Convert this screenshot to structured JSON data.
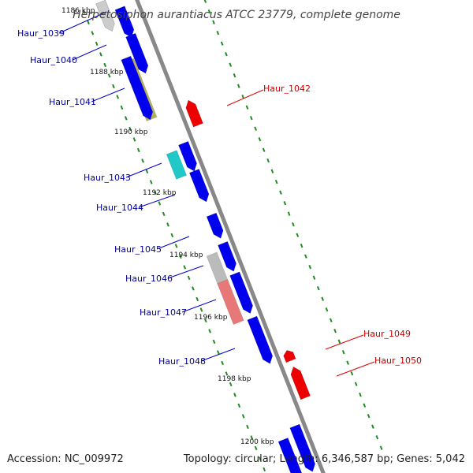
{
  "title": "Herpetosiphon aurantiacus ATCC 23779, complete genome",
  "accession": "Accession: NC_009972",
  "summary": "Topology: circular; Length: 6,346,587 bp; Genes: 5,042",
  "colors": {
    "backbone": "#888888",
    "forward_gene": "#0000ee",
    "reverse_gene": "#ee0000",
    "forward_label": "#000099",
    "reverse_label": "#cc0000",
    "tick_dots": "#228b22"
  },
  "kbp_ticks": [
    "1186 kbp",
    "1188 kbp",
    "1190 kbp",
    "1192 kbp",
    "1194 kbp",
    "1196 kbp",
    "1198 kbp",
    "1200 kbp"
  ],
  "genes": [
    {
      "label": "Haur_1039",
      "strand": "forward",
      "color": "#0000ee"
    },
    {
      "label": "Haur_1040",
      "strand": "forward",
      "color": "#0000ee"
    },
    {
      "label": "Haur_1041",
      "strand": "forward",
      "color": "#0000ee"
    },
    {
      "label": "Haur_1042",
      "strand": "reverse",
      "color": "#ee0000"
    },
    {
      "label": "Haur_1043",
      "strand": "forward",
      "color": "#0000ee"
    },
    {
      "label": "Haur_1044",
      "strand": "forward",
      "color": "#0000ee"
    },
    {
      "label": "Haur_1045",
      "strand": "forward",
      "color": "#0000ee"
    },
    {
      "label": "Haur_1046",
      "strand": "forward",
      "color": "#0000ee"
    },
    {
      "label": "Haur_1047",
      "strand": "forward",
      "color": "#0000ee"
    },
    {
      "label": "Haur_1048",
      "strand": "forward",
      "color": "#0000ee"
    },
    {
      "label": "Haur_1049",
      "strand": "reverse",
      "color": "#ee0000"
    },
    {
      "label": "Haur_1050",
      "strand": "reverse",
      "color": "#ee0000"
    }
  ],
  "features": [
    {
      "kind": "feature",
      "color": "#b5b060"
    },
    {
      "kind": "feature",
      "color": "#20c8c8"
    },
    {
      "kind": "feature",
      "color": "#bbbbbb"
    },
    {
      "kind": "feature",
      "color": "#e87878"
    }
  ]
}
